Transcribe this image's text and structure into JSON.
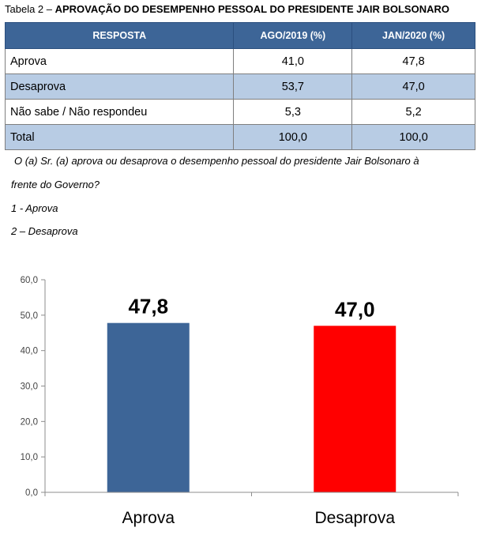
{
  "caption": {
    "prefix": "Tabela 2 – ",
    "title": "APROVAÇÃO DO DESEMPENHO PESSOAL DO PRESIDENTE JAIR BOLSONARO"
  },
  "table": {
    "headers": [
      "RESPOSTA",
      "AGO/2019 (%)",
      "JAN/2020 (%)"
    ],
    "rows": [
      [
        "Aprova",
        "41,0",
        "47,8"
      ],
      [
        "Desaprova",
        "53,7",
        "47,0"
      ],
      [
        "Não sabe / Não respondeu",
        "5,3",
        "5,2"
      ],
      [
        "Total",
        "100,0",
        "100,0"
      ]
    ]
  },
  "question": {
    "line1": "O (a) Sr. (a) aprova ou desaprova o desempenho pessoal do presidente Jair Bolsonaro à",
    "line2": "frente do Governo?",
    "option1": "1 - Aprova",
    "option2": "2 – Desaprova"
  },
  "chart_data": {
    "type": "bar",
    "categories": [
      "Aprova",
      "Desaprova"
    ],
    "values": [
      47.8,
      47.0
    ],
    "value_labels": [
      "47,8",
      "47,0"
    ],
    "colors": [
      "#3d6597",
      "#ff0000"
    ],
    "ylim": [
      0,
      60
    ],
    "yticks": [
      "0,0",
      "10,0",
      "20,0",
      "30,0",
      "40,0",
      "50,0",
      "60,0"
    ],
    "grid": false,
    "legend": "none",
    "title": "",
    "xlabel": "",
    "ylabel": ""
  },
  "colors": {
    "header_bg": "#3d6597",
    "shaded_row": "#b8cce4"
  }
}
